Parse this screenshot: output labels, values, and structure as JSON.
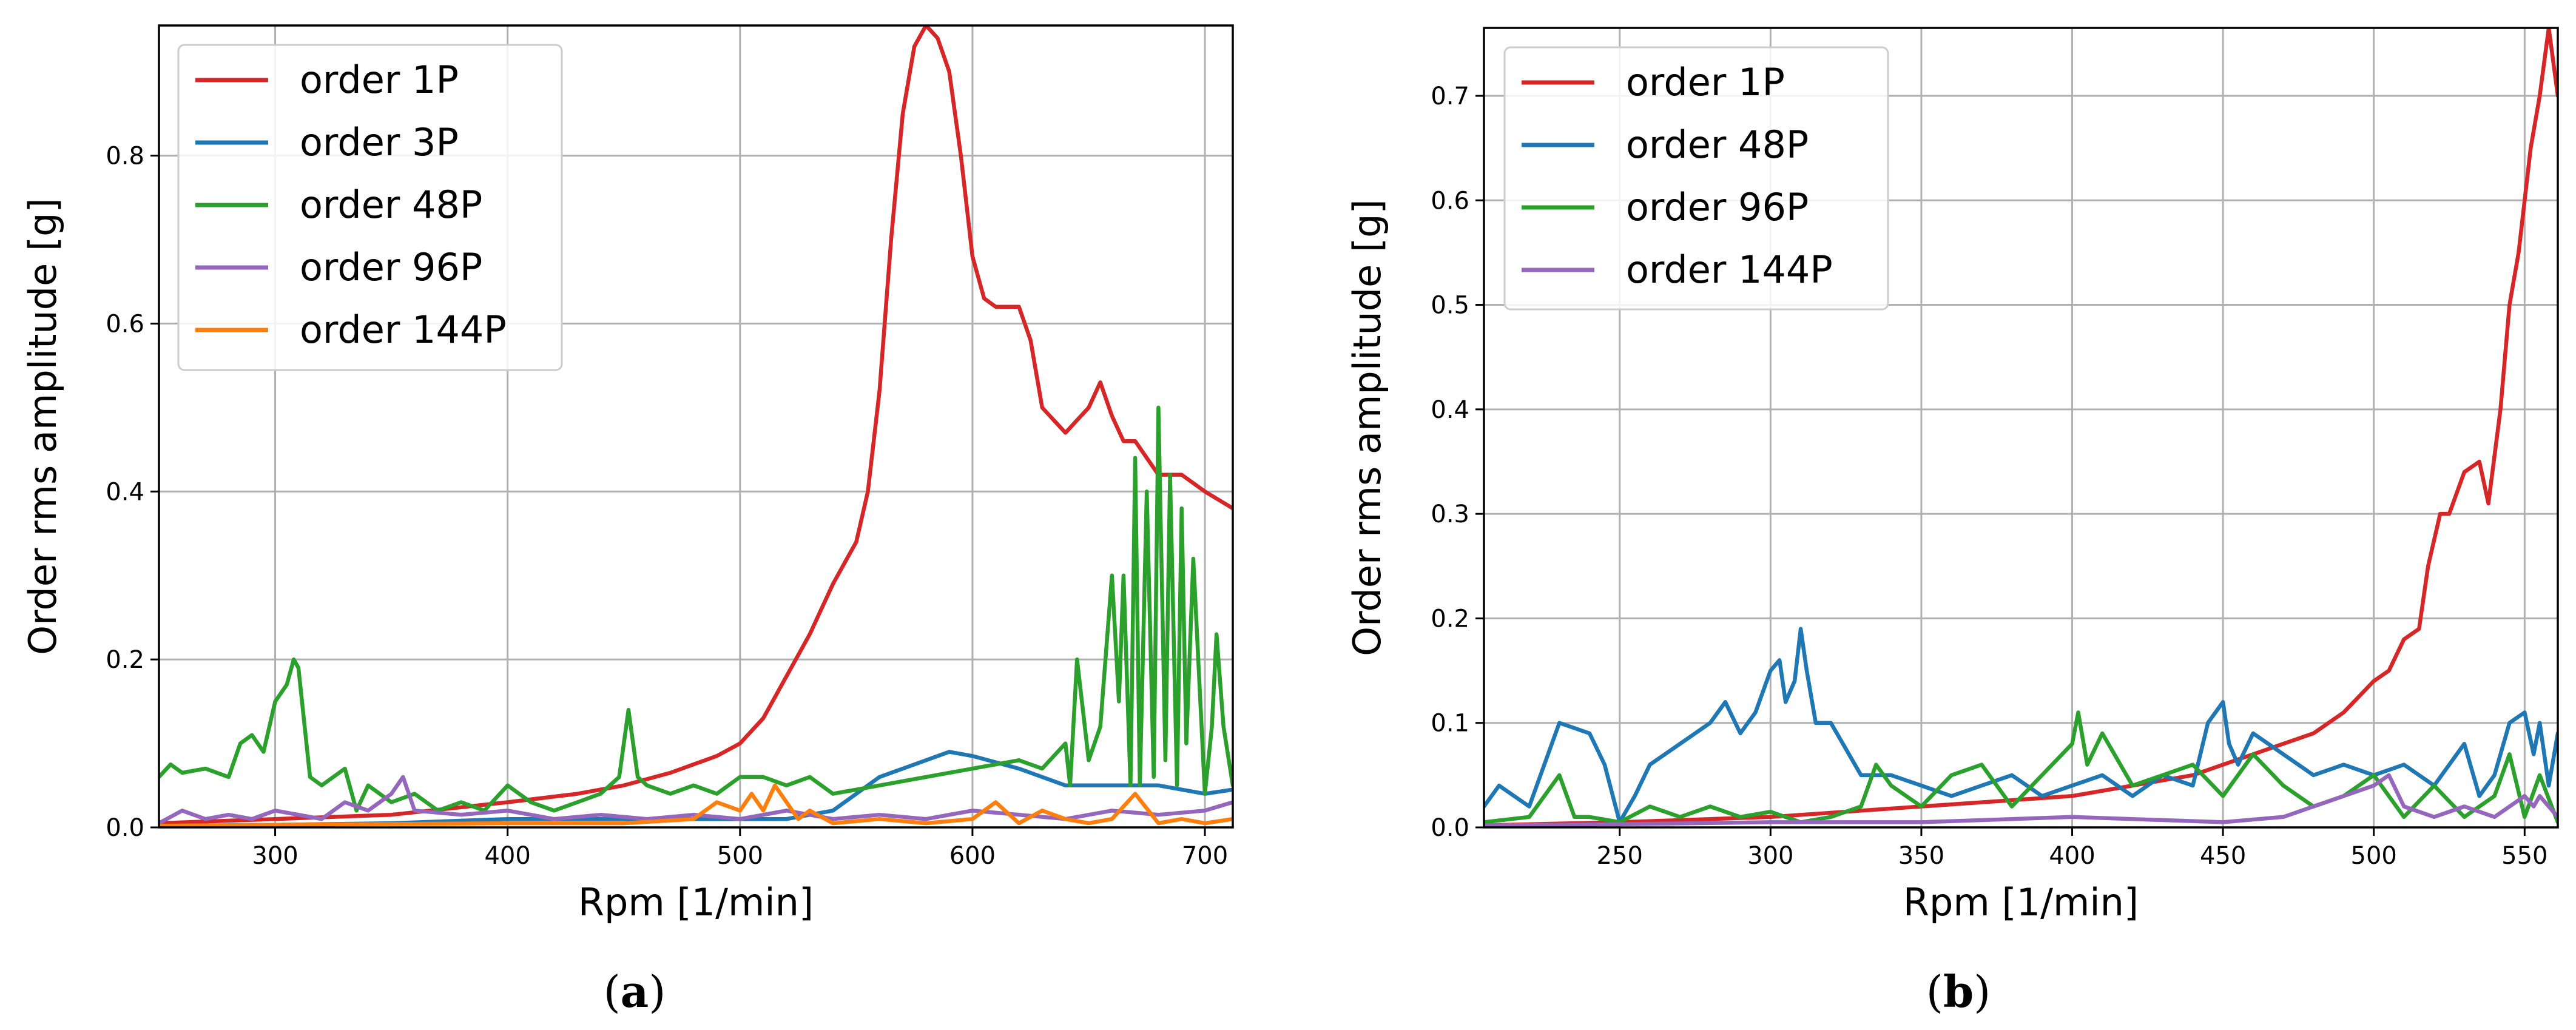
{
  "chart_data": [
    {
      "type": "line",
      "caption": "(a)",
      "xlabel": "Rpm [1/min]",
      "ylabel": "Order rms amplitude [g]",
      "xlim": [
        250,
        712
      ],
      "ylim": [
        0,
        0.955
      ],
      "xticks": [
        300,
        400,
        500,
        600,
        700
      ],
      "yticks": [
        0.0,
        0.2,
        0.4,
        0.6,
        0.8
      ],
      "grid": true,
      "legend_position": "upper-left",
      "series": [
        {
          "name": "order 1P",
          "color": "#d62728",
          "x": [
            250,
            300,
            350,
            400,
            430,
            450,
            470,
            490,
            500,
            510,
            520,
            530,
            540,
            550,
            555,
            560,
            565,
            570,
            575,
            580,
            585,
            590,
            595,
            600,
            605,
            610,
            620,
            625,
            630,
            640,
            650,
            655,
            660,
            665,
            670,
            675,
            680,
            690,
            700,
            712
          ],
          "y": [
            0.005,
            0.01,
            0.015,
            0.03,
            0.04,
            0.05,
            0.065,
            0.085,
            0.1,
            0.13,
            0.18,
            0.23,
            0.29,
            0.34,
            0.4,
            0.52,
            0.7,
            0.85,
            0.93,
            0.955,
            0.94,
            0.9,
            0.8,
            0.68,
            0.63,
            0.62,
            0.62,
            0.58,
            0.5,
            0.47,
            0.5,
            0.53,
            0.49,
            0.46,
            0.46,
            0.44,
            0.42,
            0.42,
            0.4,
            0.38
          ]
        },
        {
          "name": "order 3P",
          "color": "#1f77b4",
          "x": [
            250,
            300,
            350,
            400,
            450,
            500,
            520,
            540,
            560,
            580,
            590,
            600,
            620,
            640,
            660,
            680,
            700,
            712
          ],
          "y": [
            0.002,
            0.003,
            0.005,
            0.01,
            0.01,
            0.01,
            0.01,
            0.02,
            0.06,
            0.08,
            0.09,
            0.085,
            0.07,
            0.05,
            0.05,
            0.05,
            0.04,
            0.045
          ]
        },
        {
          "name": "order 48P",
          "color": "#2ca02c",
          "x": [
            250,
            255,
            260,
            270,
            280,
            285,
            290,
            295,
            300,
            305,
            308,
            310,
            315,
            320,
            330,
            335,
            340,
            350,
            360,
            370,
            380,
            390,
            400,
            410,
            420,
            430,
            440,
            448,
            452,
            456,
            460,
            470,
            480,
            490,
            500,
            510,
            520,
            530,
            540,
            560,
            580,
            600,
            620,
            630,
            640,
            642,
            645,
            650,
            655,
            660,
            663,
            665,
            668,
            670,
            672,
            675,
            678,
            680,
            683,
            685,
            688,
            690,
            692,
            695,
            700,
            703,
            705,
            708,
            712
          ],
          "y": [
            0.06,
            0.075,
            0.065,
            0.07,
            0.06,
            0.1,
            0.11,
            0.09,
            0.15,
            0.17,
            0.2,
            0.19,
            0.06,
            0.05,
            0.07,
            0.02,
            0.05,
            0.03,
            0.04,
            0.02,
            0.03,
            0.02,
            0.05,
            0.03,
            0.02,
            0.03,
            0.04,
            0.06,
            0.14,
            0.06,
            0.05,
            0.04,
            0.05,
            0.04,
            0.06,
            0.06,
            0.05,
            0.06,
            0.04,
            0.05,
            0.06,
            0.07,
            0.08,
            0.07,
            0.1,
            0.05,
            0.2,
            0.08,
            0.12,
            0.3,
            0.15,
            0.3,
            0.05,
            0.44,
            0.05,
            0.4,
            0.06,
            0.5,
            0.08,
            0.42,
            0.05,
            0.38,
            0.1,
            0.32,
            0.04,
            0.12,
            0.23,
            0.12,
            0.05
          ]
        },
        {
          "name": "order 96P",
          "color": "#9467bd",
          "x": [
            250,
            260,
            270,
            280,
            290,
            300,
            310,
            320,
            330,
            340,
            350,
            355,
            360,
            380,
            400,
            420,
            440,
            460,
            480,
            500,
            520,
            540,
            560,
            580,
            600,
            620,
            640,
            660,
            680,
            700,
            712
          ],
          "y": [
            0.005,
            0.02,
            0.01,
            0.015,
            0.01,
            0.02,
            0.015,
            0.01,
            0.03,
            0.02,
            0.04,
            0.06,
            0.02,
            0.015,
            0.02,
            0.01,
            0.015,
            0.01,
            0.015,
            0.01,
            0.02,
            0.01,
            0.015,
            0.01,
            0.02,
            0.015,
            0.01,
            0.02,
            0.015,
            0.02,
            0.03
          ]
        },
        {
          "name": "order 144P",
          "color": "#ff7f0e",
          "x": [
            250,
            300,
            350,
            400,
            450,
            480,
            490,
            500,
            505,
            510,
            515,
            520,
            525,
            530,
            540,
            560,
            580,
            600,
            610,
            620,
            630,
            640,
            650,
            660,
            670,
            680,
            690,
            700,
            712
          ],
          "y": [
            0.002,
            0.003,
            0.004,
            0.005,
            0.005,
            0.01,
            0.03,
            0.02,
            0.04,
            0.02,
            0.05,
            0.03,
            0.01,
            0.02,
            0.005,
            0.01,
            0.005,
            0.01,
            0.03,
            0.005,
            0.02,
            0.01,
            0.005,
            0.01,
            0.04,
            0.005,
            0.01,
            0.005,
            0.01
          ]
        }
      ]
    },
    {
      "type": "line",
      "caption": "(b)",
      "xlabel": "Rpm [1/min]",
      "ylabel": "Order rms amplitude [g]",
      "xlim": [
        205,
        561
      ],
      "ylim": [
        0,
        0.765
      ],
      "xticks": [
        250,
        300,
        350,
        400,
        450,
        500,
        550
      ],
      "yticks": [
        0.0,
        0.1,
        0.2,
        0.3,
        0.4,
        0.5,
        0.6,
        0.7
      ],
      "grid": true,
      "legend_position": "upper-left",
      "series": [
        {
          "name": "order 1P",
          "color": "#d62728",
          "x": [
            205,
            250,
            300,
            350,
            400,
            440,
            460,
            480,
            490,
            500,
            505,
            510,
            515,
            518,
            522,
            525,
            530,
            535,
            538,
            542,
            545,
            548,
            552,
            555,
            558,
            561
          ],
          "y": [
            0.002,
            0.005,
            0.01,
            0.02,
            0.03,
            0.05,
            0.07,
            0.09,
            0.11,
            0.14,
            0.15,
            0.18,
            0.19,
            0.25,
            0.3,
            0.3,
            0.34,
            0.35,
            0.31,
            0.4,
            0.5,
            0.55,
            0.65,
            0.7,
            0.765,
            0.7
          ]
        },
        {
          "name": "order 48P",
          "color": "#1f77b4",
          "x": [
            205,
            210,
            220,
            230,
            240,
            245,
            250,
            255,
            260,
            270,
            280,
            285,
            290,
            295,
            300,
            303,
            305,
            308,
            310,
            312,
            315,
            320,
            330,
            340,
            350,
            360,
            370,
            380,
            390,
            400,
            410,
            420,
            430,
            440,
            445,
            450,
            452,
            455,
            460,
            470,
            480,
            490,
            500,
            510,
            520,
            530,
            535,
            540,
            545,
            550,
            553,
            555,
            558,
            561
          ],
          "y": [
            0.02,
            0.04,
            0.02,
            0.1,
            0.09,
            0.06,
            0.005,
            0.03,
            0.06,
            0.08,
            0.1,
            0.12,
            0.09,
            0.11,
            0.15,
            0.16,
            0.12,
            0.14,
            0.19,
            0.15,
            0.1,
            0.1,
            0.05,
            0.05,
            0.04,
            0.03,
            0.04,
            0.05,
            0.03,
            0.04,
            0.05,
            0.03,
            0.05,
            0.04,
            0.1,
            0.12,
            0.08,
            0.06,
            0.09,
            0.07,
            0.05,
            0.06,
            0.05,
            0.06,
            0.04,
            0.08,
            0.03,
            0.05,
            0.1,
            0.11,
            0.07,
            0.1,
            0.04,
            0.09
          ]
        },
        {
          "name": "order 96P",
          "color": "#2ca02c",
          "x": [
            205,
            220,
            230,
            235,
            240,
            250,
            260,
            270,
            280,
            290,
            300,
            310,
            320,
            330,
            335,
            340,
            350,
            360,
            370,
            380,
            390,
            400,
            402,
            405,
            410,
            420,
            430,
            440,
            450,
            460,
            470,
            480,
            490,
            500,
            510,
            520,
            530,
            540,
            545,
            550,
            555,
            561
          ],
          "y": [
            0.005,
            0.01,
            0.05,
            0.01,
            0.01,
            0.005,
            0.02,
            0.01,
            0.02,
            0.01,
            0.015,
            0.005,
            0.01,
            0.02,
            0.06,
            0.04,
            0.02,
            0.05,
            0.06,
            0.02,
            0.05,
            0.08,
            0.11,
            0.06,
            0.09,
            0.04,
            0.05,
            0.06,
            0.03,
            0.07,
            0.04,
            0.02,
            0.03,
            0.05,
            0.01,
            0.04,
            0.01,
            0.03,
            0.07,
            0.01,
            0.05,
            0.005
          ]
        },
        {
          "name": "order 144P",
          "color": "#9467bd",
          "x": [
            205,
            250,
            300,
            350,
            400,
            450,
            470,
            480,
            490,
            500,
            505,
            510,
            520,
            530,
            540,
            550,
            553,
            555,
            561
          ],
          "y": [
            0.002,
            0.003,
            0.005,
            0.005,
            0.01,
            0.005,
            0.01,
            0.02,
            0.03,
            0.04,
            0.05,
            0.02,
            0.01,
            0.02,
            0.01,
            0.03,
            0.02,
            0.03,
            0.01
          ]
        }
      ]
    }
  ]
}
